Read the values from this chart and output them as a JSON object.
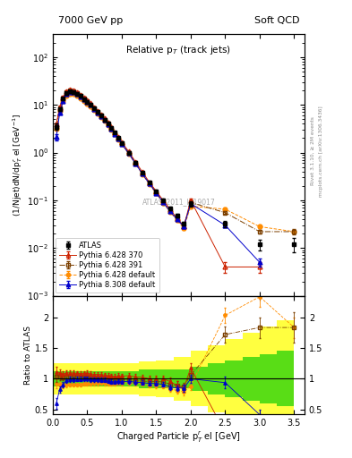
{
  "title_left": "7000 GeV pp",
  "title_right": "Soft QCD",
  "plot_title": "Relative p$_{T}$ (track jets)",
  "ylabel_main": "(1/Njet)dN/dp$^{r}_{T}$ el [GeV$^{-1}$]",
  "ylabel_ratio": "Ratio to ATLAS",
  "xlabel": "Charged Particle p$^{r}_{T}_{T}$ el [GeV]",
  "watermark": "ATLAS_2011_I919017",
  "right_label": "Rivet 3.1.10, ≥ 2M events",
  "right_label2": "mcplots.cern.ch [arXiv:1306.3436]",
  "atlas_x": [
    0.05,
    0.1,
    0.15,
    0.2,
    0.25,
    0.3,
    0.35,
    0.4,
    0.45,
    0.5,
    0.55,
    0.6,
    0.65,
    0.7,
    0.75,
    0.8,
    0.85,
    0.9,
    0.95,
    1.0,
    1.1,
    1.2,
    1.3,
    1.4,
    1.5,
    1.6,
    1.7,
    1.8,
    1.9,
    2.0,
    2.5,
    3.0,
    3.5
  ],
  "atlas_y": [
    3.5,
    8.2,
    13.5,
    17.5,
    19.0,
    18.5,
    17.0,
    15.2,
    13.2,
    11.5,
    10.0,
    8.4,
    7.0,
    5.9,
    4.9,
    4.0,
    3.25,
    2.6,
    2.0,
    1.6,
    1.0,
    0.62,
    0.38,
    0.24,
    0.155,
    0.1,
    0.068,
    0.047,
    0.033,
    0.085,
    0.032,
    0.012,
    0.012
  ],
  "atlas_yerr": [
    0.5,
    0.7,
    0.9,
    1.0,
    1.0,
    0.9,
    0.8,
    0.7,
    0.6,
    0.55,
    0.45,
    0.38,
    0.32,
    0.27,
    0.22,
    0.18,
    0.15,
    0.12,
    0.09,
    0.07,
    0.05,
    0.035,
    0.022,
    0.015,
    0.01,
    0.007,
    0.005,
    0.004,
    0.003,
    0.01,
    0.005,
    0.003,
    0.004
  ],
  "p6_370_x": [
    0.05,
    0.1,
    0.15,
    0.2,
    0.25,
    0.3,
    0.35,
    0.4,
    0.45,
    0.5,
    0.55,
    0.6,
    0.65,
    0.7,
    0.75,
    0.8,
    0.85,
    0.9,
    0.95,
    1.0,
    1.1,
    1.2,
    1.3,
    1.4,
    1.5,
    1.6,
    1.7,
    1.8,
    1.9,
    2.0,
    2.5,
    3.0
  ],
  "p6_370_y": [
    3.9,
    9.0,
    14.5,
    19.2,
    20.8,
    20.2,
    18.5,
    16.5,
    14.4,
    12.5,
    10.8,
    9.0,
    7.5,
    6.3,
    5.2,
    4.2,
    3.4,
    2.7,
    2.1,
    1.67,
    1.05,
    0.64,
    0.39,
    0.24,
    0.155,
    0.1,
    0.065,
    0.042,
    0.028,
    0.1,
    0.004,
    0.004
  ],
  "p6_370_yerr": [
    0.3,
    0.5,
    0.7,
    0.8,
    0.8,
    0.8,
    0.7,
    0.6,
    0.5,
    0.5,
    0.4,
    0.32,
    0.27,
    0.22,
    0.18,
    0.15,
    0.12,
    0.095,
    0.075,
    0.06,
    0.04,
    0.026,
    0.016,
    0.011,
    0.007,
    0.005,
    0.004,
    0.003,
    0.002,
    0.007,
    0.001,
    0.001
  ],
  "p6_391_x": [
    0.05,
    0.1,
    0.15,
    0.2,
    0.25,
    0.3,
    0.35,
    0.4,
    0.45,
    0.5,
    0.55,
    0.6,
    0.65,
    0.7,
    0.75,
    0.8,
    0.85,
    0.9,
    0.95,
    1.0,
    1.1,
    1.2,
    1.3,
    1.4,
    1.5,
    1.6,
    1.7,
    1.8,
    1.9,
    2.0,
    2.5,
    3.0,
    3.5
  ],
  "p6_391_y": [
    3.6,
    8.5,
    13.8,
    18.2,
    19.7,
    19.1,
    17.5,
    15.6,
    13.6,
    11.8,
    10.2,
    8.5,
    7.1,
    5.95,
    4.9,
    3.95,
    3.2,
    2.55,
    1.98,
    1.57,
    0.99,
    0.6,
    0.365,
    0.23,
    0.148,
    0.095,
    0.062,
    0.042,
    0.029,
    0.09,
    0.055,
    0.022,
    0.022
  ],
  "p6_391_yerr": [
    0.3,
    0.5,
    0.6,
    0.7,
    0.7,
    0.7,
    0.6,
    0.55,
    0.5,
    0.4,
    0.36,
    0.3,
    0.26,
    0.22,
    0.18,
    0.14,
    0.12,
    0.09,
    0.07,
    0.06,
    0.038,
    0.025,
    0.016,
    0.011,
    0.007,
    0.005,
    0.004,
    0.003,
    0.002,
    0.006,
    0.004,
    0.002,
    0.003
  ],
  "p6_def_x": [
    0.05,
    0.1,
    0.15,
    0.2,
    0.25,
    0.3,
    0.35,
    0.4,
    0.45,
    0.5,
    0.55,
    0.6,
    0.65,
    0.7,
    0.75,
    0.8,
    0.85,
    0.9,
    0.95,
    1.0,
    1.1,
    1.2,
    1.3,
    1.4,
    1.5,
    1.6,
    1.7,
    1.8,
    1.9,
    2.0,
    2.5,
    3.0,
    3.5
  ],
  "p6_def_y": [
    3.2,
    7.4,
    12.0,
    15.8,
    17.2,
    16.7,
    15.4,
    13.8,
    12.1,
    10.6,
    9.2,
    7.8,
    6.5,
    5.5,
    4.55,
    3.7,
    3.0,
    2.4,
    1.87,
    1.49,
    0.94,
    0.575,
    0.35,
    0.215,
    0.138,
    0.088,
    0.057,
    0.038,
    0.026,
    0.075,
    0.065,
    0.028,
    0.022
  ],
  "p6_def_yerr": [
    0.25,
    0.4,
    0.55,
    0.65,
    0.65,
    0.62,
    0.57,
    0.5,
    0.44,
    0.38,
    0.33,
    0.28,
    0.23,
    0.2,
    0.16,
    0.13,
    0.11,
    0.086,
    0.067,
    0.054,
    0.034,
    0.022,
    0.014,
    0.009,
    0.006,
    0.004,
    0.003,
    0.002,
    0.002,
    0.005,
    0.004,
    0.002,
    0.002
  ],
  "p8_def_x": [
    0.05,
    0.1,
    0.15,
    0.2,
    0.25,
    0.3,
    0.35,
    0.4,
    0.45,
    0.5,
    0.55,
    0.6,
    0.65,
    0.7,
    0.75,
    0.8,
    0.85,
    0.9,
    0.95,
    1.0,
    1.1,
    1.2,
    1.3,
    1.4,
    1.5,
    1.6,
    1.7,
    1.8,
    1.9,
    2.0,
    2.5,
    3.0
  ],
  "p8_def_y": [
    2.1,
    6.8,
    12.2,
    17.0,
    18.8,
    18.3,
    16.9,
    15.1,
    13.2,
    11.5,
    9.9,
    8.3,
    6.9,
    5.8,
    4.8,
    3.85,
    3.1,
    2.47,
    1.92,
    1.52,
    0.96,
    0.585,
    0.356,
    0.222,
    0.143,
    0.091,
    0.059,
    0.04,
    0.028,
    0.085,
    0.03,
    0.005
  ],
  "p8_def_yerr": [
    0.3,
    0.4,
    0.6,
    0.7,
    0.75,
    0.7,
    0.65,
    0.55,
    0.48,
    0.42,
    0.36,
    0.3,
    0.25,
    0.21,
    0.17,
    0.14,
    0.11,
    0.089,
    0.069,
    0.055,
    0.035,
    0.022,
    0.014,
    0.009,
    0.006,
    0.004,
    0.003,
    0.002,
    0.002,
    0.006,
    0.003,
    0.001
  ],
  "band_edges": [
    0.0,
    0.25,
    0.5,
    0.75,
    1.0,
    1.25,
    1.5,
    1.75,
    2.0,
    2.25,
    2.5,
    2.75,
    3.0,
    3.25,
    3.5
  ],
  "band_green": [
    0.12,
    0.12,
    0.12,
    0.12,
    0.12,
    0.15,
    0.15,
    0.15,
    0.2,
    0.25,
    0.3,
    0.35,
    0.4,
    0.45,
    0.5
  ],
  "band_yellow": [
    0.25,
    0.25,
    0.25,
    0.25,
    0.25,
    0.28,
    0.3,
    0.35,
    0.45,
    0.55,
    0.65,
    0.75,
    0.85,
    0.95,
    1.05
  ],
  "colors": {
    "atlas": "#000000",
    "p6_370": "#cc2200",
    "p6_391": "#7b3f00",
    "p6_def": "#ff8c00",
    "p8_def": "#0000cc"
  },
  "xlim": [
    0.0,
    3.65
  ],
  "ylim_main": [
    0.001,
    300
  ],
  "ylim_ratio": [
    0.42,
    2.35
  ],
  "ratio_yticks": [
    0.5,
    1.0,
    1.5,
    2.0
  ]
}
